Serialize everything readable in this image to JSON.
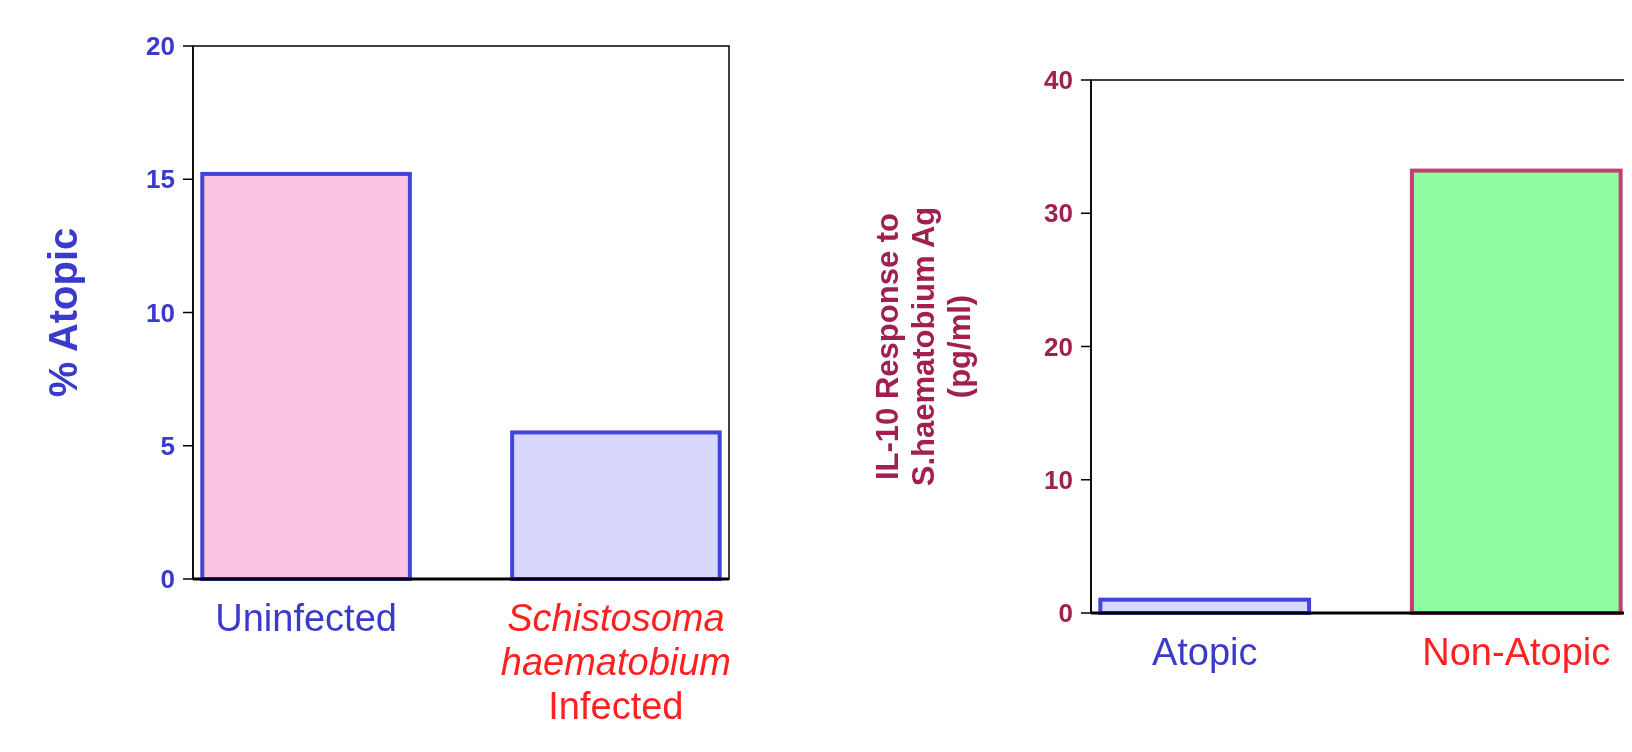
{
  "chart_data": [
    {
      "type": "bar",
      "ylabel": "% Atopic",
      "categories": [
        "Uninfected",
        "Schistosoma haematobium Infected"
      ],
      "values": [
        15.2,
        5.5
      ],
      "colors": [
        "#fcc4e4",
        "#d8d8fc"
      ],
      "ylim": [
        0,
        20
      ],
      "yticks": [
        0,
        5,
        10,
        15,
        20
      ],
      "grid": false
    },
    {
      "type": "bar",
      "ylabel": "IL-10 Response to S.haematobium Ag (pg/ml)",
      "categories": [
        "Atopic",
        "Non-Atopic"
      ],
      "values": [
        1,
        33.2
      ],
      "colors": [
        "#d8d8fc",
        "#90fca0"
      ],
      "ylim": [
        0,
        40
      ],
      "yticks": [
        0,
        10,
        20,
        30,
        40
      ],
      "grid": false
    }
  ]
}
